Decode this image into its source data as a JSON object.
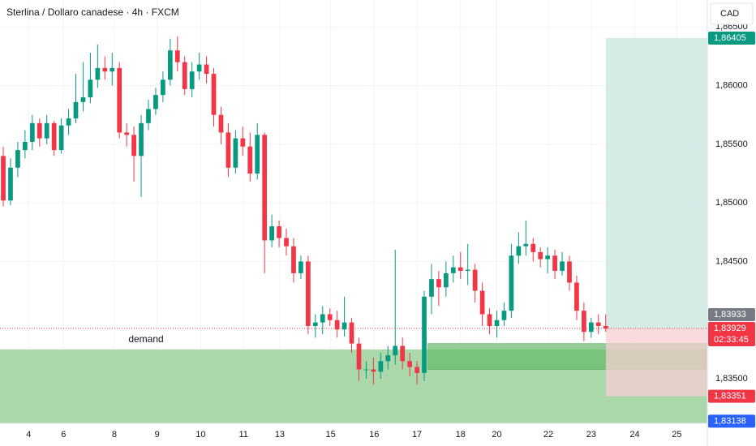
{
  "chart_data": {
    "type": "candlestick",
    "title": "Sterlina / Dollaro canadese · 4h · FXCM",
    "currency": "CAD",
    "up_color": "#089981",
    "down_color": "#f23645",
    "grid": true,
    "xlim": [
      -0.45,
      97
    ],
    "ylim": [
      1.8312,
      1.8673
    ],
    "yticks": [
      {
        "value": 1.835,
        "label": "1,83500"
      },
      {
        "value": 1.845,
        "label": "1,84500"
      },
      {
        "value": 1.85,
        "label": "1,85000"
      },
      {
        "value": 1.855,
        "label": "1,85500"
      },
      {
        "value": 1.86,
        "label": "1,86000"
      },
      {
        "value": 1.865,
        "label": "1,86500"
      }
    ],
    "xticks": [
      {
        "value": 3.5,
        "label": "4"
      },
      {
        "value": 8.3,
        "label": "6"
      },
      {
        "value": 15.3,
        "label": "8"
      },
      {
        "value": 21.2,
        "label": "9"
      },
      {
        "value": 27.2,
        "label": "10"
      },
      {
        "value": 33.1,
        "label": "11"
      },
      {
        "value": 38.1,
        "label": "13"
      },
      {
        "value": 45.1,
        "label": "15"
      },
      {
        "value": 51.1,
        "label": "16"
      },
      {
        "value": 57,
        "label": "17"
      },
      {
        "value": 63,
        "label": "18"
      },
      {
        "value": 68,
        "label": "20"
      },
      {
        "value": 75.1,
        "label": "22"
      },
      {
        "value": 81,
        "label": "23"
      },
      {
        "value": 87,
        "label": "24"
      },
      {
        "value": 92.8,
        "label": "25"
      }
    ],
    "open": [
      1.854,
      1.8502,
      1.853,
      1.8545,
      1.8552,
      1.8568,
      1.8555,
      1.8568,
      1.8545,
      1.8566,
      1.8572,
      1.8586,
      1.859,
      1.8605,
      1.8615,
      1.8612,
      1.8615,
      1.856,
      1.8558,
      1.854,
      1.8568,
      1.858,
      1.8592,
      1.8605,
      1.863,
      1.862,
      1.8597,
      1.8612,
      1.8618,
      1.861,
      1.8575,
      1.856,
      1.853,
      1.8555,
      1.8548,
      1.8525,
      1.8558,
      1.8468,
      1.848,
      1.847,
      1.8463,
      1.844,
      1.845,
      1.8395,
      1.8398,
      1.8405,
      1.84,
      1.8392,
      1.8398,
      1.838,
      1.8358,
      1.8358,
      1.8356,
      1.8365,
      1.837,
      1.8378,
      1.8365,
      1.836,
      1.8355,
      1.842,
      1.8435,
      1.8428,
      1.844,
      1.8445,
      1.8442,
      1.8443,
      1.8425,
      1.8405,
      1.8395,
      1.84,
      1.8408,
      1.8455,
      1.8463,
      1.8465,
      1.8458,
      1.8452,
      1.8455,
      1.8442,
      1.845,
      1.8432,
      1.8408,
      1.839,
      1.8398,
      1.8395
    ],
    "high": [
      1.8548,
      1.8538,
      1.8552,
      1.8562,
      1.8575,
      1.8572,
      1.8575,
      1.857,
      1.8572,
      1.858,
      1.861,
      1.862,
      1.8628,
      1.8635,
      1.8625,
      1.8628,
      1.862,
      1.8568,
      1.8565,
      1.8575,
      1.8588,
      1.8598,
      1.8612,
      1.864,
      1.8642,
      1.8625,
      1.862,
      1.8628,
      1.8625,
      1.8615,
      1.8582,
      1.8568,
      1.8562,
      1.8565,
      1.856,
      1.8568,
      1.856,
      1.849,
      1.8485,
      1.8478,
      1.847,
      1.8455,
      1.8455,
      1.8405,
      1.8412,
      1.841,
      1.8408,
      1.842,
      1.8402,
      1.8385,
      1.8365,
      1.8368,
      1.8372,
      1.8378,
      1.846,
      1.8385,
      1.8372,
      1.8365,
      1.8425,
      1.8448,
      1.8442,
      1.845,
      1.8455,
      1.8458,
      1.8465,
      1.8448,
      1.8432,
      1.841,
      1.8408,
      1.8415,
      1.8465,
      1.8475,
      1.8485,
      1.847,
      1.8462,
      1.8462,
      1.846,
      1.8458,
      1.8455,
      1.8438,
      1.8415,
      1.8402,
      1.8405,
      1.8405
    ],
    "low": [
      1.8497,
      1.8498,
      1.8522,
      1.8538,
      1.8545,
      1.8548,
      1.855,
      1.854,
      1.8542,
      1.8558,
      1.8568,
      1.8578,
      1.8585,
      1.8598,
      1.8605,
      1.86,
      1.8555,
      1.8548,
      1.8518,
      1.8505,
      1.8562,
      1.8575,
      1.8586,
      1.86,
      1.8612,
      1.8592,
      1.859,
      1.8605,
      1.8602,
      1.8565,
      1.855,
      1.8522,
      1.8525,
      1.854,
      1.8518,
      1.852,
      1.844,
      1.8462,
      1.8462,
      1.8455,
      1.8432,
      1.8435,
      1.8388,
      1.8385,
      1.8388,
      1.8395,
      1.8385,
      1.8386,
      1.8372,
      1.8348,
      1.835,
      1.8345,
      1.835,
      1.8358,
      1.8362,
      1.8358,
      1.8352,
      1.8345,
      1.8348,
      1.8405,
      1.8412,
      1.842,
      1.8432,
      1.8435,
      1.843,
      1.8415,
      1.8395,
      1.8388,
      1.8385,
      1.8395,
      1.8402,
      1.8448,
      1.8455,
      1.845,
      1.8445,
      1.844,
      1.8435,
      1.8438,
      1.8425,
      1.84,
      1.8382,
      1.8385,
      1.8388,
      1.839
    ],
    "close": [
      1.8502,
      1.853,
      1.8545,
      1.8552,
      1.8568,
      1.8555,
      1.8568,
      1.8545,
      1.8566,
      1.8572,
      1.8586,
      1.859,
      1.8605,
      1.8615,
      1.8612,
      1.8615,
      1.856,
      1.8558,
      1.854,
      1.8568,
      1.858,
      1.8592,
      1.8605,
      1.863,
      1.862,
      1.8597,
      1.8612,
      1.8618,
      1.861,
      1.8575,
      1.856,
      1.853,
      1.8555,
      1.8548,
      1.8525,
      1.8558,
      1.8468,
      1.848,
      1.847,
      1.8463,
      1.844,
      1.845,
      1.8395,
      1.8398,
      1.8405,
      1.84,
      1.8392,
      1.8398,
      1.838,
      1.8358,
      1.8358,
      1.8356,
      1.8365,
      1.837,
      1.8378,
      1.8365,
      1.836,
      1.8355,
      1.842,
      1.8435,
      1.8428,
      1.844,
      1.8445,
      1.8442,
      1.8443,
      1.8425,
      1.8405,
      1.8395,
      1.84,
      1.8408,
      1.8455,
      1.8463,
      1.8465,
      1.8458,
      1.8452,
      1.8455,
      1.8442,
      1.845,
      1.8432,
      1.8408,
      1.839,
      1.8398,
      1.8395,
      1.83929
    ],
    "demand_zone": {
      "label": "demand",
      "top": 1.8375,
      "color": "#a5d6a7"
    },
    "inner_zone": {
      "top": 1.838,
      "bottom": 1.8358,
      "start": 58.5,
      "color": "#66bb6a"
    },
    "position": {
      "target": 1.86405,
      "entry": 1.83929,
      "stop": 1.83351,
      "profit_color": "#cfe9e3",
      "loss_color": "#f7cdd1"
    },
    "price_labels": [
      {
        "value": 1.86405,
        "label": "1,86405",
        "color": "#089981"
      },
      {
        "value": 1.83929,
        "label": "1,83929",
        "color": "#f23645",
        "countdown": "02:33:45"
      },
      {
        "value": 1.83933,
        "label": "1,83933",
        "color": "#787b86"
      },
      {
        "value": 1.83351,
        "label": "1,83351",
        "color": "#f23645"
      },
      {
        "value": 1.83138,
        "label": "1,83138",
        "color": "#2962ff"
      }
    ]
  }
}
